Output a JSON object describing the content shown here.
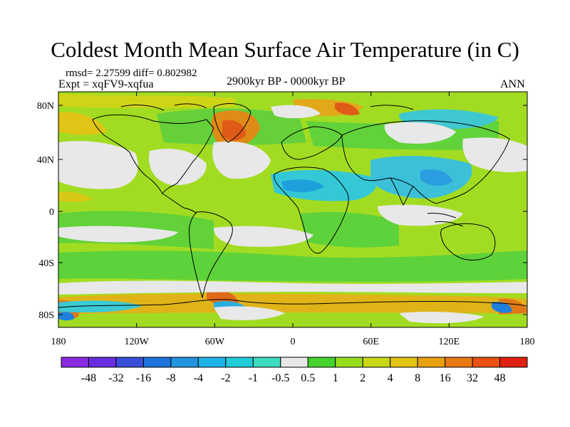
{
  "title": "Coldest Month Mean Surface Air Temperature (in C)",
  "stats": "rmsd= 2.27599 diff= 0.802982",
  "experiment": "Expt = xqFV9-xqfua",
  "period": "2900kyr BP - 0000kyr BP",
  "season": "ANN",
  "map": {
    "lat_ticks": [
      "80N",
      "40N",
      "0",
      "40S",
      "80S"
    ],
    "lon_ticks": [
      "180",
      "120W",
      "60W",
      "0",
      "60E",
      "120E",
      "180"
    ]
  },
  "colorbar": {
    "labels": [
      "-48",
      "-32",
      "-16",
      "-8",
      "-4",
      "-2",
      "-1",
      "-0.5",
      "0.5",
      "1",
      "2",
      "4",
      "8",
      "16",
      "32",
      "48"
    ],
    "colors": [
      "#8a2be2",
      "#6a2ee0",
      "#3a4fd8",
      "#1f74dc",
      "#2395e0",
      "#1fb2e6",
      "#22ccd8",
      "#3ddcc0",
      "#e8e8e8",
      "#44d22e",
      "#98dc1e",
      "#c8d816",
      "#e2c412",
      "#e8a010",
      "#e87812",
      "#e85014",
      "#e02010"
    ],
    "neutral_color": "#e8e8e8"
  },
  "palette": {
    "green": "#5ed23a",
    "yellowgreen": "#9edc22",
    "cyan": "#34c8d6",
    "blue": "#1ea0dc",
    "orange": "#e08a18",
    "red": "#e05a18",
    "white": "#e8e8e8"
  }
}
